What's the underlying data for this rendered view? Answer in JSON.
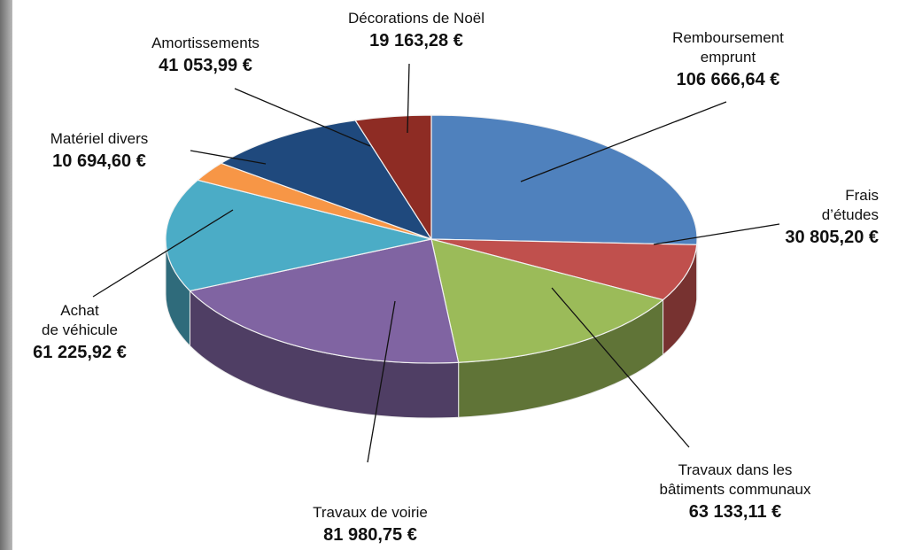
{
  "chart_data": {
    "type": "pie",
    "categories": [
      "Remboursement\nemprunt",
      "Frais\nd’études",
      "Travaux dans les\nbâtiments communaux",
      "Travaux de voirie",
      "Achat\nde véhicule",
      "Matériel divers",
      "Amortissements",
      "Décorations de Noël"
    ],
    "values": [
      106666.64,
      30805.2,
      63133.11,
      81980.75,
      61225.92,
      10694.6,
      41053.99,
      19163.28
    ],
    "value_labels": [
      "106 666,64 €",
      "30 805,20 €",
      "63 133,11 €",
      "81 980,75 €",
      "61 225,92 €",
      "10 694,60 €",
      "41 053,99 €",
      "19 163,28 €"
    ],
    "colors": [
      "#4f81bd",
      "#c0504d",
      "#9bbb59",
      "#8064a2",
      "#4bacc6",
      "#f79646",
      "#1f497d",
      "#8e2c24"
    ]
  }
}
